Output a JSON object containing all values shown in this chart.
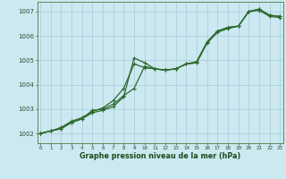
{
  "xlabel": "Graphe pression niveau de la mer (hPa)",
  "background_color": "#cce8f0",
  "grid_color": "#a8ccd8",
  "line_color": "#2d6a2d",
  "x_ticks": [
    0,
    1,
    2,
    3,
    4,
    5,
    6,
    7,
    8,
    9,
    10,
    11,
    12,
    13,
    14,
    15,
    16,
    17,
    18,
    19,
    20,
    21,
    22,
    23
  ],
  "ylim": [
    1001.6,
    1007.4
  ],
  "xlim": [
    -0.3,
    23.3
  ],
  "yticks": [
    1002,
    1003,
    1004,
    1005,
    1006,
    1007
  ],
  "series1": [
    1002.0,
    1002.1,
    1002.25,
    1002.5,
    1002.65,
    1002.9,
    1003.05,
    1003.35,
    1003.85,
    1004.85,
    1004.7,
    1004.65,
    1004.6,
    1004.65,
    1004.85,
    1004.95,
    1005.75,
    1006.2,
    1006.35,
    1006.4,
    1007.0,
    1007.1,
    1006.85,
    1006.8
  ],
  "series2": [
    1002.0,
    1002.1,
    1002.2,
    1002.45,
    1002.6,
    1002.95,
    1003.0,
    1003.2,
    1003.55,
    1003.85,
    1004.75,
    1004.65,
    1004.6,
    1004.65,
    1004.85,
    1004.9,
    1005.7,
    1006.15,
    1006.3,
    1006.4,
    1007.0,
    1007.05,
    1006.8,
    1006.75
  ],
  "series3": [
    1002.0,
    1002.1,
    1002.2,
    1002.45,
    1002.6,
    1002.85,
    1002.95,
    1003.1,
    1003.5,
    1005.1,
    1004.9,
    1004.65,
    1004.6,
    1004.65,
    1004.85,
    1004.9,
    1005.75,
    1006.2,
    1006.35,
    1006.4,
    1007.0,
    1007.1,
    1006.85,
    1006.8
  ]
}
